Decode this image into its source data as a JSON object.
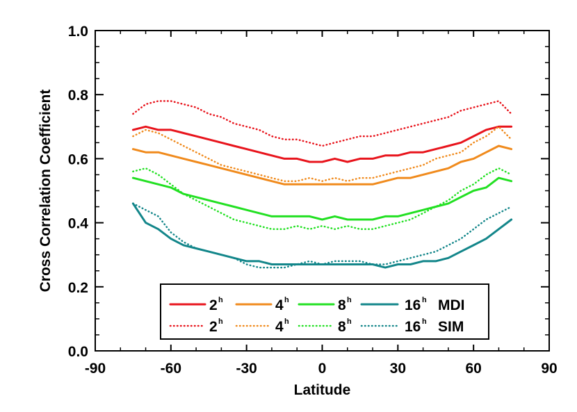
{
  "chart_data": {
    "type": "line",
    "title": "",
    "xlabel": "Latitude",
    "ylabel": "Cross Correlation Coefficient",
    "xlim": [
      -90,
      90
    ],
    "ylim": [
      0.0,
      1.0
    ],
    "xticks": [
      "-90",
      "-60",
      "-30",
      "0",
      "30",
      "60",
      "90"
    ],
    "yticks": [
      "0.0",
      "0.2",
      "0.4",
      "0.6",
      "0.8",
      "1.0"
    ],
    "grid": false,
    "legend_placement": "bottom-center",
    "legend": {
      "rows": [
        {
          "label": "MDI",
          "entries": [
            {
              "value": "2",
              "sup": "h"
            },
            {
              "value": "4",
              "sup": "h"
            },
            {
              "value": "8",
              "sup": "h"
            },
            {
              "value": "16",
              "sup": "h"
            }
          ]
        },
        {
          "label": "SIM",
          "entries": [
            {
              "value": "2",
              "sup": "h"
            },
            {
              "value": "4",
              "sup": "h"
            },
            {
              "value": "8",
              "sup": "h"
            },
            {
              "value": "16",
              "sup": "h"
            }
          ]
        }
      ]
    },
    "x": [
      -75,
      -70,
      -65,
      -60,
      -55,
      -50,
      -45,
      -40,
      -35,
      -30,
      -25,
      -20,
      -15,
      -10,
      -5,
      0,
      5,
      10,
      15,
      20,
      25,
      30,
      35,
      40,
      45,
      50,
      55,
      60,
      65,
      70,
      75
    ],
    "series": [
      {
        "group": "MDI",
        "lag": "2h",
        "color": "#e8141c",
        "style": "solid",
        "values": [
          0.69,
          0.7,
          0.69,
          0.69,
          0.68,
          0.67,
          0.66,
          0.65,
          0.64,
          0.63,
          0.62,
          0.61,
          0.6,
          0.6,
          0.59,
          0.59,
          0.6,
          0.59,
          0.6,
          0.6,
          0.61,
          0.61,
          0.62,
          0.62,
          0.63,
          0.64,
          0.65,
          0.67,
          0.69,
          0.7,
          0.7
        ]
      },
      {
        "group": "MDI",
        "lag": "4h",
        "color": "#f08a1c",
        "style": "solid",
        "values": [
          0.63,
          0.62,
          0.62,
          0.61,
          0.6,
          0.59,
          0.58,
          0.57,
          0.56,
          0.55,
          0.54,
          0.53,
          0.52,
          0.52,
          0.52,
          0.52,
          0.52,
          0.52,
          0.52,
          0.52,
          0.53,
          0.54,
          0.54,
          0.55,
          0.56,
          0.57,
          0.59,
          0.6,
          0.62,
          0.64,
          0.63
        ]
      },
      {
        "group": "MDI",
        "lag": "8h",
        "color": "#22e022",
        "style": "solid",
        "values": [
          0.54,
          0.53,
          0.52,
          0.51,
          0.49,
          0.48,
          0.47,
          0.46,
          0.45,
          0.44,
          0.43,
          0.42,
          0.42,
          0.42,
          0.42,
          0.41,
          0.42,
          0.41,
          0.41,
          0.41,
          0.42,
          0.42,
          0.43,
          0.44,
          0.45,
          0.46,
          0.48,
          0.5,
          0.51,
          0.54,
          0.53
        ]
      },
      {
        "group": "MDI",
        "lag": "16h",
        "color": "#13868a",
        "style": "solid",
        "values": [
          0.46,
          0.4,
          0.38,
          0.35,
          0.33,
          0.32,
          0.31,
          0.3,
          0.29,
          0.28,
          0.28,
          0.27,
          0.27,
          0.27,
          0.27,
          0.27,
          0.27,
          0.27,
          0.27,
          0.27,
          0.26,
          0.27,
          0.27,
          0.28,
          0.28,
          0.29,
          0.31,
          0.33,
          0.35,
          0.38,
          0.41
        ]
      },
      {
        "group": "SIM",
        "lag": "2h",
        "color": "#e8141c",
        "style": "dotted",
        "values": [
          0.74,
          0.77,
          0.78,
          0.78,
          0.77,
          0.76,
          0.74,
          0.73,
          0.71,
          0.7,
          0.69,
          0.67,
          0.66,
          0.66,
          0.65,
          0.64,
          0.65,
          0.66,
          0.67,
          0.67,
          0.68,
          0.69,
          0.7,
          0.71,
          0.72,
          0.73,
          0.75,
          0.76,
          0.77,
          0.78,
          0.74
        ]
      },
      {
        "group": "SIM",
        "lag": "4h",
        "color": "#f08a1c",
        "style": "dotted",
        "values": [
          0.67,
          0.69,
          0.68,
          0.66,
          0.64,
          0.62,
          0.6,
          0.58,
          0.57,
          0.56,
          0.55,
          0.54,
          0.53,
          0.53,
          0.54,
          0.53,
          0.54,
          0.53,
          0.54,
          0.54,
          0.55,
          0.56,
          0.57,
          0.58,
          0.6,
          0.61,
          0.62,
          0.65,
          0.67,
          0.7,
          0.66
        ]
      },
      {
        "group": "SIM",
        "lag": "8h",
        "color": "#22e022",
        "style": "dotted",
        "values": [
          0.56,
          0.57,
          0.55,
          0.52,
          0.49,
          0.47,
          0.45,
          0.43,
          0.41,
          0.4,
          0.39,
          0.38,
          0.38,
          0.39,
          0.38,
          0.39,
          0.38,
          0.39,
          0.38,
          0.38,
          0.39,
          0.4,
          0.41,
          0.43,
          0.45,
          0.47,
          0.5,
          0.52,
          0.55,
          0.57,
          0.55
        ]
      },
      {
        "group": "SIM",
        "lag": "16h",
        "color": "#13868a",
        "style": "dotted",
        "values": [
          0.46,
          0.44,
          0.42,
          0.37,
          0.34,
          0.32,
          0.31,
          0.3,
          0.29,
          0.27,
          0.26,
          0.26,
          0.26,
          0.27,
          0.28,
          0.27,
          0.28,
          0.28,
          0.28,
          0.27,
          0.27,
          0.28,
          0.29,
          0.3,
          0.31,
          0.33,
          0.35,
          0.38,
          0.41,
          0.43,
          0.45
        ]
      }
    ]
  }
}
